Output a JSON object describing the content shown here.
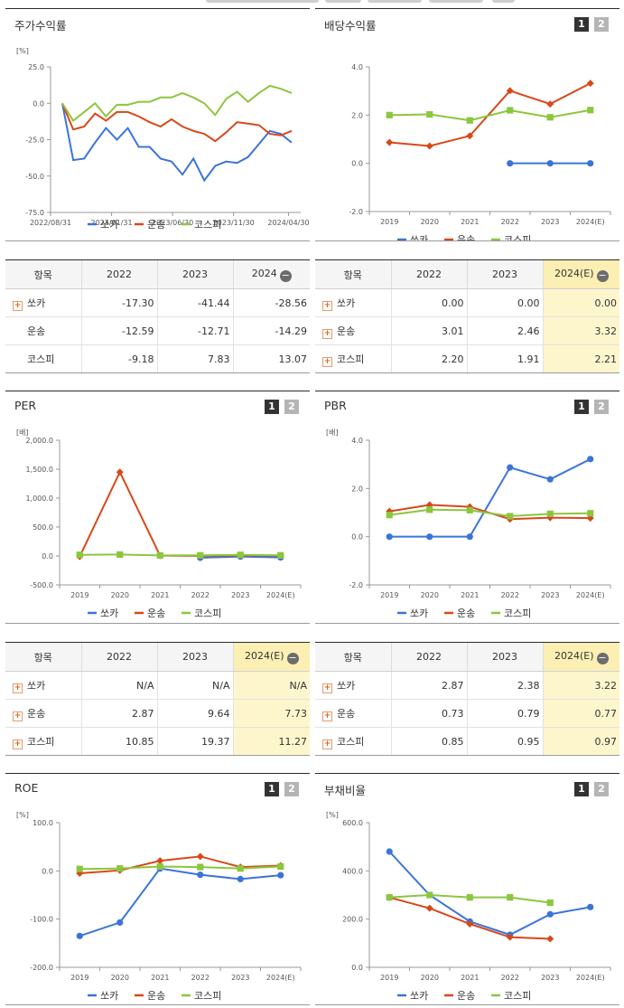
{
  "panels": {
    "stock": {
      "title": "주가수익률",
      "unit": "[%]",
      "yticks": [
        "25.0",
        "0.0",
        "-25.0",
        "-50.0",
        "-75.0"
      ],
      "xticks": [
        "2022/08/31",
        "2023/01/31",
        "2023/06/30",
        "2023/11/30",
        "2024/04/30"
      ]
    },
    "dividend": {
      "title": "배당수익률",
      "btn1": "1",
      "btn2": "2"
    },
    "per": {
      "title": "PER",
      "btn1": "1",
      "btn2": "2"
    },
    "pbr": {
      "title": "PBR",
      "btn1": "1",
      "btn2": "2"
    },
    "roe": {
      "title": "ROE",
      "btn1": "1",
      "btn2": "2"
    },
    "debt": {
      "title": "부채비율",
      "btn1": "1",
      "btn2": "2"
    }
  },
  "legend": [
    "쏘카",
    "운송",
    "코스피"
  ],
  "colors": {
    "socar": "#3b74d9",
    "transport": "#d8481a",
    "kospi": "#8cc63e"
  },
  "chart_data": [
    {
      "id": "stock",
      "type": "line",
      "ylabel": "[%]",
      "ylim": [
        -75,
        25
      ],
      "yticks": [
        25,
        0,
        -25,
        -50,
        -75
      ],
      "xlim": [
        0,
        41
      ],
      "x_tick_labels": [
        "2022/08/31",
        "2023/01/31",
        "2023/06/30",
        "2023/11/30",
        "2024/04/30"
      ],
      "x_tick_positions": [
        0,
        10,
        20,
        30,
        39
      ],
      "series": [
        {
          "name": "쏘카",
          "values": [
            0,
            -39,
            -38,
            -27,
            -17,
            -25,
            -17,
            -30,
            -30,
            -38,
            -40,
            -49,
            -38,
            -53,
            -43,
            -40,
            -41,
            -37,
            -28,
            -19,
            -21,
            -27
          ]
        },
        {
          "name": "운송",
          "values": [
            0,
            -18,
            -16,
            -7,
            -12,
            -6,
            -6,
            -9,
            -13,
            -16,
            -11,
            -16,
            -19,
            -21,
            -26,
            -20,
            -13,
            -14,
            -15,
            -21,
            -22,
            -19
          ]
        },
        {
          "name": "코스피",
          "values": [
            0,
            -12,
            -6,
            0,
            -9,
            -1,
            -1,
            1,
            1,
            4,
            4,
            7,
            4,
            0,
            -8,
            3,
            8,
            1,
            7,
            12,
            10,
            7
          ]
        }
      ],
      "grid": false,
      "legend_position": "bottom"
    },
    {
      "id": "dividend",
      "type": "line",
      "ylabel": "",
      "ylim": [
        -2,
        4
      ],
      "yticks": [
        4,
        2,
        0,
        -2
      ],
      "categories": [
        "2019",
        "2020",
        "2021",
        "2022",
        "2023",
        "2024(E)"
      ],
      "series": [
        {
          "name": "쏘카",
          "values": [
            null,
            null,
            null,
            0.0,
            0.0,
            0.0
          ]
        },
        {
          "name": "운송",
          "values": [
            0.87,
            0.72,
            1.14,
            3.01,
            2.46,
            3.32
          ]
        },
        {
          "name": "코스피",
          "values": [
            2.0,
            2.03,
            1.78,
            2.2,
            1.91,
            2.21
          ]
        }
      ],
      "legend_position": "bottom"
    },
    {
      "id": "per",
      "type": "line",
      "ylabel": "[배]",
      "ylim": [
        -500,
        2000
      ],
      "yticks": [
        2000,
        1500,
        1000,
        500,
        0,
        -500
      ],
      "categories": [
        "2019",
        "2020",
        "2021",
        "2022",
        "2023",
        "2024(E)"
      ],
      "series": [
        {
          "name": "쏘카",
          "values": [
            null,
            null,
            null,
            -30,
            -10,
            -25
          ]
        },
        {
          "name": "운송",
          "values": [
            -10,
            1450,
            5,
            2.87,
            9.64,
            7.73
          ]
        },
        {
          "name": "코스피",
          "values": [
            20,
            25,
            10,
            10.85,
            19.37,
            11.27
          ]
        }
      ],
      "legend_position": "bottom"
    },
    {
      "id": "pbr",
      "type": "line",
      "ylabel": "[배]",
      "ylim": [
        -2,
        4
      ],
      "yticks": [
        4,
        2,
        0,
        -2
      ],
      "categories": [
        "2019",
        "2020",
        "2021",
        "2022",
        "2023",
        "2024(E)"
      ],
      "series": [
        {
          "name": "쏘카",
          "values": [
            0.0,
            0.0,
            0.0,
            2.87,
            2.38,
            3.22
          ]
        },
        {
          "name": "운송",
          "values": [
            1.05,
            1.32,
            1.24,
            0.73,
            0.79,
            0.77
          ]
        },
        {
          "name": "코스피",
          "values": [
            0.9,
            1.12,
            1.1,
            0.85,
            0.95,
            0.97
          ]
        }
      ],
      "legend_position": "bottom"
    },
    {
      "id": "roe",
      "type": "line",
      "ylabel": "[%]",
      "ylim": [
        -200,
        100
      ],
      "yticks": [
        100,
        0,
        -100,
        -200
      ],
      "categories": [
        "2019",
        "2020",
        "2021",
        "2022",
        "2023",
        "2024(E)"
      ],
      "series": [
        {
          "name": "쏘카",
          "values": [
            -135,
            -107,
            5,
            -8,
            -17,
            -9
          ]
        },
        {
          "name": "운송",
          "values": [
            -5,
            1,
            21,
            30,
            8,
            11
          ]
        },
        {
          "name": "코스피",
          "values": [
            4,
            5,
            9,
            8,
            5,
            9
          ]
        }
      ],
      "legend_position": "bottom"
    },
    {
      "id": "debt",
      "type": "line",
      "ylabel": "[%]",
      "ylim": [
        0,
        600
      ],
      "yticks": [
        600,
        400,
        200,
        0
      ],
      "categories": [
        "2019",
        "2020",
        "2021",
        "2022",
        "2023",
        "2024(E)"
      ],
      "series": [
        {
          "name": "쏘카",
          "values": [
            480,
            300,
            190,
            135,
            220,
            250
          ]
        },
        {
          "name": "운송",
          "values": [
            290,
            245,
            180,
            125,
            118,
            null
          ]
        },
        {
          "name": "코스피",
          "values": [
            290,
            300,
            290,
            290,
            268,
            null
          ]
        }
      ],
      "legend_position": "bottom"
    }
  ],
  "tables": {
    "stock": {
      "headers": [
        "항목",
        "2022",
        "2023",
        "2024"
      ],
      "rows": [
        {
          "label": "쏘카",
          "v1": "-17.30",
          "v2": "-41.44",
          "v3": "-28.56"
        },
        {
          "label": "운송",
          "v1": "-12.59",
          "v2": "-12.71",
          "v3": "-14.29"
        },
        {
          "label": "코스피",
          "v1": "-9.18",
          "v2": "7.83",
          "v3": "13.07"
        }
      ]
    },
    "dividend": {
      "headers": [
        "항목",
        "2022",
        "2023",
        "2024(E)"
      ],
      "rows": [
        {
          "label": "쏘카",
          "v1": "0.00",
          "v2": "0.00",
          "v3": "0.00"
        },
        {
          "label": "운송",
          "v1": "3.01",
          "v2": "2.46",
          "v3": "3.32"
        },
        {
          "label": "코스피",
          "v1": "2.20",
          "v2": "1.91",
          "v3": "2.21"
        }
      ]
    },
    "per": {
      "headers": [
        "항목",
        "2022",
        "2023",
        "2024(E)"
      ],
      "rows": [
        {
          "label": "쏘카",
          "v1": "N/A",
          "v2": "N/A",
          "v3": "N/A"
        },
        {
          "label": "운송",
          "v1": "2.87",
          "v2": "9.64",
          "v3": "7.73"
        },
        {
          "label": "코스피",
          "v1": "10.85",
          "v2": "19.37",
          "v3": "11.27"
        }
      ]
    },
    "pbr": {
      "headers": [
        "항목",
        "2022",
        "2023",
        "2024(E)"
      ],
      "rows": [
        {
          "label": "쏘카",
          "v1": "2.87",
          "v2": "2.38",
          "v3": "3.22"
        },
        {
          "label": "운송",
          "v1": "0.73",
          "v2": "0.79",
          "v3": "0.77"
        },
        {
          "label": "코스피",
          "v1": "0.85",
          "v2": "0.95",
          "v3": "0.97"
        }
      ]
    }
  }
}
